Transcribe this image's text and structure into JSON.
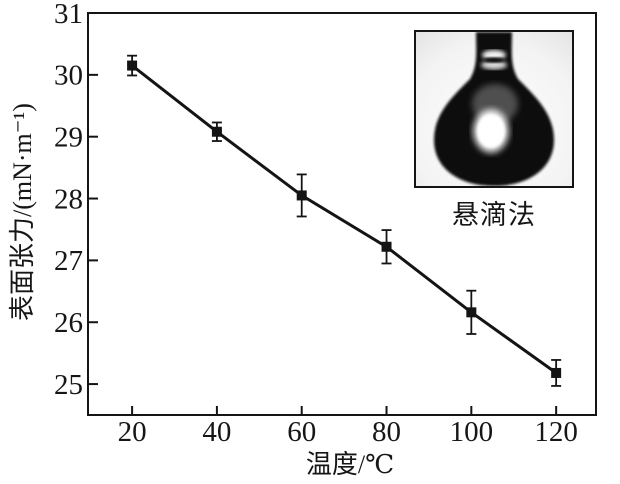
{
  "figure": {
    "background": "#ffffff",
    "ink_color": "#141414"
  },
  "chart_data": {
    "type": "line",
    "title": "",
    "xlabel": "温度/℃",
    "ylabel": "表面张力/(mN·m⁻¹)",
    "x": [
      20,
      40,
      60,
      80,
      100,
      120
    ],
    "series": [
      {
        "name": "表面张力",
        "values": [
          30.15,
          29.08,
          28.05,
          27.22,
          26.16,
          25.18
        ],
        "errors": [
          0.16,
          0.15,
          0.34,
          0.27,
          0.35,
          0.21
        ],
        "color": "#141414",
        "marker": "square",
        "line_width": 3
      }
    ],
    "xlim": [
      9.6,
      129.4
    ],
    "ylim": [
      24.5,
      31
    ],
    "x_ticks": [
      20,
      40,
      60,
      80,
      100,
      120
    ],
    "y_ticks": [
      25,
      26,
      27,
      28,
      29,
      30,
      31
    ],
    "grid": false,
    "legend": "none",
    "error_bars": true,
    "frame": "full-box"
  },
  "inset": {
    "label": "悬滴法",
    "photo": "pendant-drop-photo"
  }
}
